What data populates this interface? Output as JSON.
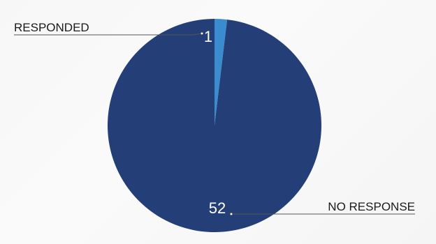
{
  "chart_data": {
    "type": "pie",
    "title": "",
    "slices": [
      {
        "label": "RESPONDED",
        "value": 1,
        "color": "#3a8ccf"
      },
      {
        "label": "NO RESPONSE",
        "value": 52,
        "color": "#243f78"
      }
    ],
    "start_angle": "top",
    "direction": "clockwise",
    "legend": "none"
  }
}
